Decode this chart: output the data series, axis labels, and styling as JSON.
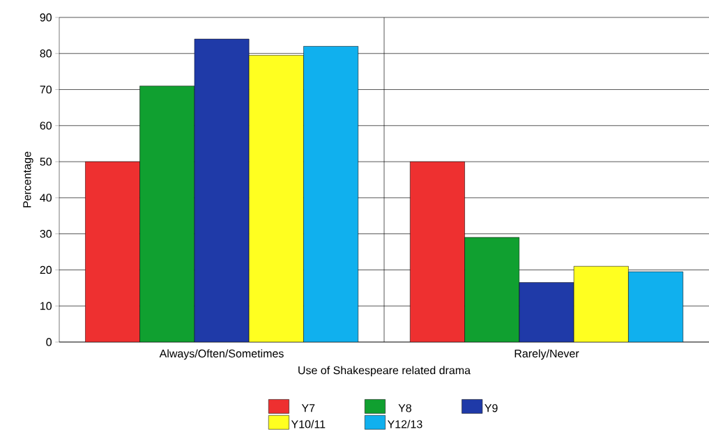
{
  "chart_data": {
    "type": "bar",
    "xlabel": "Use of Shakespeare related drama",
    "ylabel": "Percentage",
    "categories": [
      "Always/Often/Sometimes",
      "Rarely/Never"
    ],
    "series": [
      {
        "name": "Y7",
        "color": "#ee3030",
        "values": [
          50,
          50
        ]
      },
      {
        "name": "Y8",
        "color": "#10a030",
        "values": [
          71,
          29
        ]
      },
      {
        "name": "Y9",
        "color": "#1f3aa8",
        "values": [
          84,
          16.5
        ]
      },
      {
        "name": "Y10/11",
        "color": "#ffff20",
        "values": [
          79.5,
          21
        ]
      },
      {
        "name": "Y12/13",
        "color": "#10b0ee",
        "values": [
          82,
          19.5
        ]
      }
    ],
    "ylim": [
      0,
      90
    ],
    "yticks": [
      0,
      10,
      20,
      30,
      40,
      50,
      60,
      70,
      80,
      90
    ],
    "grid": true,
    "legend": "bottom"
  }
}
